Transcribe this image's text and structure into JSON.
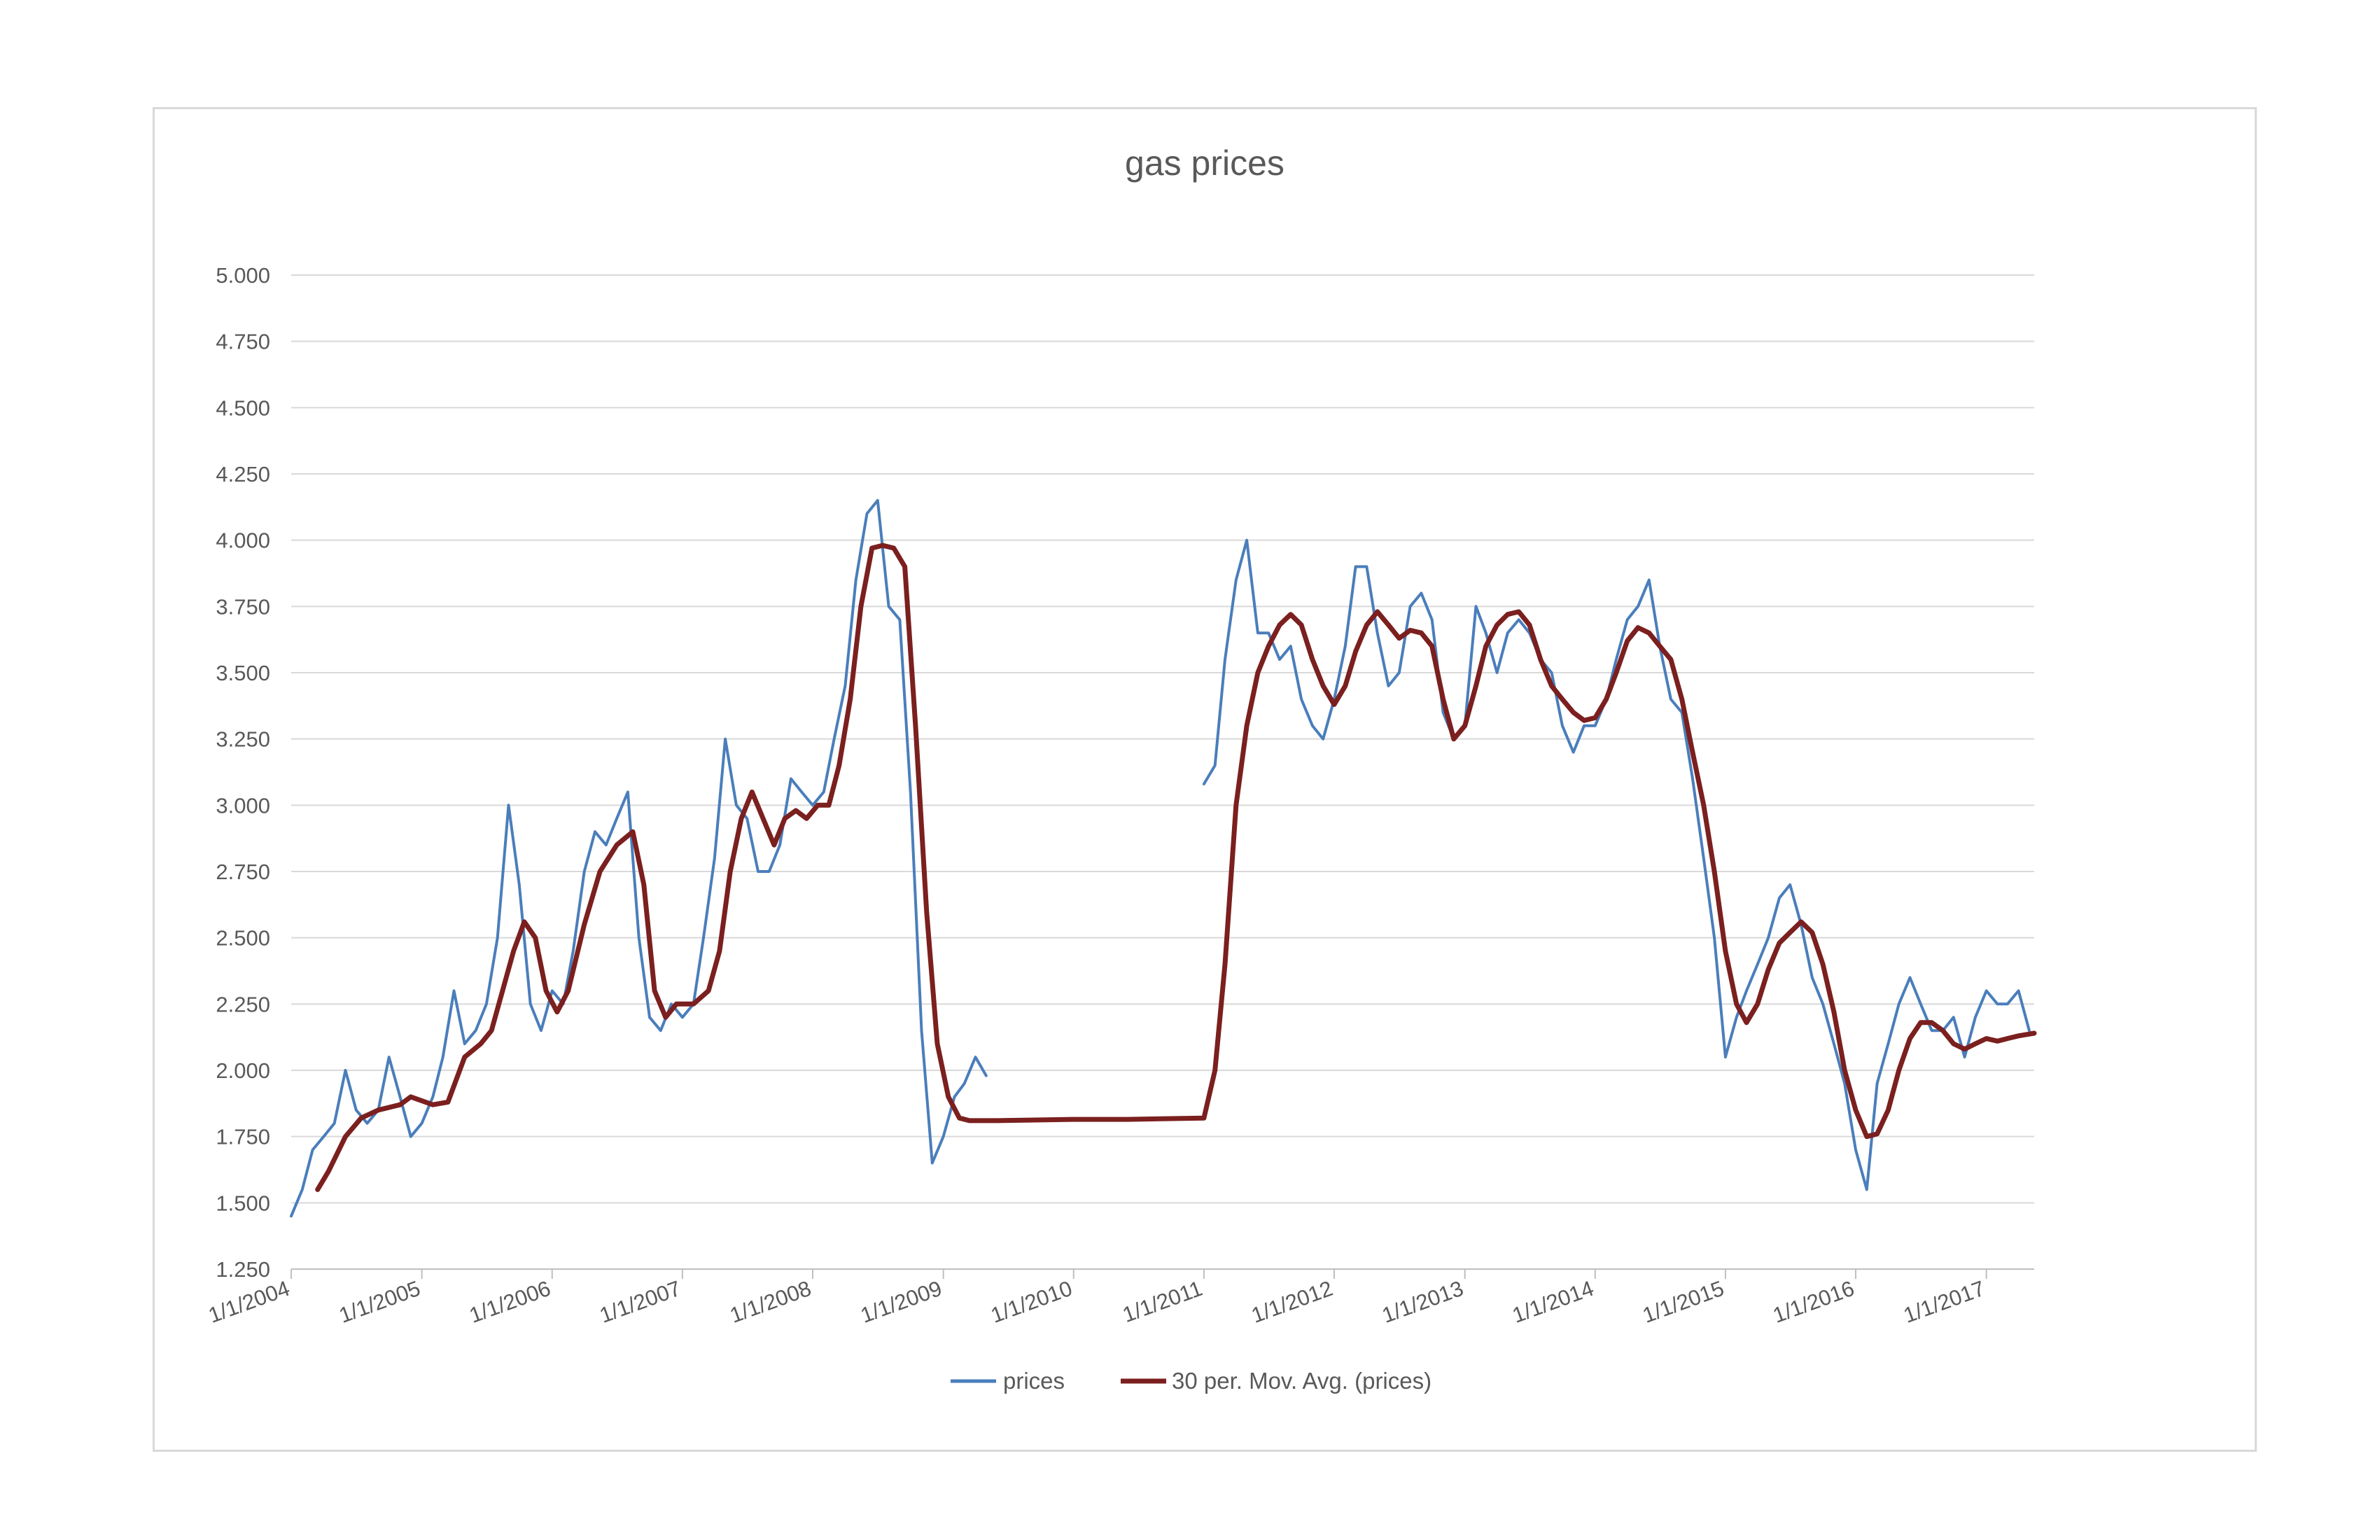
{
  "chart_data": {
    "type": "line",
    "title": "gas prices",
    "xlabel": "",
    "ylabel": "",
    "ylim": [
      1.25,
      5.0
    ],
    "yticks": [
      "1.250",
      "1.500",
      "1.750",
      "2.000",
      "2.250",
      "2.500",
      "2.750",
      "3.000",
      "3.250",
      "3.500",
      "3.750",
      "4.000",
      "4.250",
      "4.500",
      "4.750",
      "5.000"
    ],
    "xlim": [
      "2004-01-01",
      "2017-05-15"
    ],
    "xticks": [
      "1/1/2004",
      "1/1/2005",
      "1/1/2006",
      "1/1/2007",
      "1/1/2008",
      "1/1/2009",
      "1/1/2010",
      "1/1/2011",
      "1/1/2012",
      "1/1/2013",
      "1/1/2014",
      "1/1/2015",
      "1/1/2016",
      "1/1/2017"
    ],
    "grid": true,
    "legend_position": "bottom",
    "series": [
      {
        "name": "prices",
        "color": "#4a7ebb",
        "points": [
          [
            "2004-01-01",
            1.45
          ],
          [
            "2004-02-01",
            1.55
          ],
          [
            "2004-03-01",
            1.7
          ],
          [
            "2004-04-01",
            1.75
          ],
          [
            "2004-05-01",
            1.8
          ],
          [
            "2004-06-01",
            2.0
          ],
          [
            "2004-07-01",
            1.85
          ],
          [
            "2004-08-01",
            1.8
          ],
          [
            "2004-09-01",
            1.85
          ],
          [
            "2004-10-01",
            2.05
          ],
          [
            "2004-11-01",
            1.9
          ],
          [
            "2004-12-01",
            1.75
          ],
          [
            "2005-01-01",
            1.8
          ],
          [
            "2005-02-01",
            1.9
          ],
          [
            "2005-03-01",
            2.05
          ],
          [
            "2005-04-01",
            2.3
          ],
          [
            "2005-05-01",
            2.1
          ],
          [
            "2005-06-01",
            2.15
          ],
          [
            "2005-07-01",
            2.25
          ],
          [
            "2005-08-01",
            2.5
          ],
          [
            "2005-09-01",
            3.0
          ],
          [
            "2005-10-01",
            2.7
          ],
          [
            "2005-11-01",
            2.25
          ],
          [
            "2005-12-01",
            2.15
          ],
          [
            "2006-01-01",
            2.3
          ],
          [
            "2006-02-01",
            2.25
          ],
          [
            "2006-03-01",
            2.45
          ],
          [
            "2006-04-01",
            2.75
          ],
          [
            "2006-05-01",
            2.9
          ],
          [
            "2006-06-01",
            2.85
          ],
          [
            "2006-07-01",
            2.95
          ],
          [
            "2006-08-01",
            3.05
          ],
          [
            "2006-09-01",
            2.5
          ],
          [
            "2006-10-01",
            2.2
          ],
          [
            "2006-11-01",
            2.15
          ],
          [
            "2006-12-01",
            2.25
          ],
          [
            "2007-01-01",
            2.2
          ],
          [
            "2007-02-01",
            2.25
          ],
          [
            "2007-03-01",
            2.5
          ],
          [
            "2007-04-01",
            2.8
          ],
          [
            "2007-05-01",
            3.25
          ],
          [
            "2007-06-01",
            3.0
          ],
          [
            "2007-07-01",
            2.95
          ],
          [
            "2007-08-01",
            2.75
          ],
          [
            "2007-09-01",
            2.75
          ],
          [
            "2007-10-01",
            2.85
          ],
          [
            "2007-11-01",
            3.1
          ],
          [
            "2007-12-01",
            3.05
          ],
          [
            "2008-01-01",
            3.0
          ],
          [
            "2008-02-01",
            3.05
          ],
          [
            "2008-03-01",
            3.25
          ],
          [
            "2008-04-01",
            3.45
          ],
          [
            "2008-05-01",
            3.85
          ],
          [
            "2008-06-01",
            4.1
          ],
          [
            "2008-07-01",
            4.15
          ],
          [
            "2008-08-01",
            3.75
          ],
          [
            "2008-09-01",
            3.7
          ],
          [
            "2008-10-01",
            3.05
          ],
          [
            "2008-11-01",
            2.15
          ],
          [
            "2008-12-01",
            1.65
          ],
          [
            "2009-01-01",
            1.75
          ],
          [
            "2009-02-01",
            1.9
          ],
          [
            "2009-03-01",
            1.95
          ],
          [
            "2009-04-01",
            2.05
          ],
          [
            "2009-05-01",
            1.98
          ]
        ],
        "points2": [
          [
            "2011-01-01",
            3.08
          ],
          [
            "2011-02-01",
            3.15
          ],
          [
            "2011-03-01",
            3.55
          ],
          [
            "2011-04-01",
            3.85
          ],
          [
            "2011-05-01",
            4.0
          ],
          [
            "2011-06-01",
            3.65
          ],
          [
            "2011-07-01",
            3.65
          ],
          [
            "2011-08-01",
            3.55
          ],
          [
            "2011-09-01",
            3.6
          ],
          [
            "2011-10-01",
            3.4
          ],
          [
            "2011-11-01",
            3.3
          ],
          [
            "2011-12-01",
            3.25
          ],
          [
            "2012-01-01",
            3.4
          ],
          [
            "2012-02-01",
            3.6
          ],
          [
            "2012-03-01",
            3.9
          ],
          [
            "2012-04-01",
            3.9
          ],
          [
            "2012-05-01",
            3.65
          ],
          [
            "2012-06-01",
            3.45
          ],
          [
            "2012-07-01",
            3.5
          ],
          [
            "2012-08-01",
            3.75
          ],
          [
            "2012-09-01",
            3.8
          ],
          [
            "2012-10-01",
            3.7
          ],
          [
            "2012-11-01",
            3.35
          ],
          [
            "2012-12-01",
            3.25
          ],
          [
            "2013-01-01",
            3.3
          ],
          [
            "2013-02-01",
            3.75
          ],
          [
            "2013-03-01",
            3.65
          ],
          [
            "2013-04-01",
            3.5
          ],
          [
            "2013-05-01",
            3.65
          ],
          [
            "2013-06-01",
            3.7
          ],
          [
            "2013-07-01",
            3.65
          ],
          [
            "2013-08-01",
            3.55
          ],
          [
            "2013-09-01",
            3.5
          ],
          [
            "2013-10-01",
            3.3
          ],
          [
            "2013-11-01",
            3.2
          ],
          [
            "2013-12-01",
            3.3
          ],
          [
            "2014-01-01",
            3.3
          ],
          [
            "2014-02-01",
            3.4
          ],
          [
            "2014-03-01",
            3.55
          ],
          [
            "2014-04-01",
            3.7
          ],
          [
            "2014-05-01",
            3.75
          ],
          [
            "2014-06-01",
            3.85
          ],
          [
            "2014-07-01",
            3.6
          ],
          [
            "2014-08-01",
            3.4
          ],
          [
            "2014-09-01",
            3.35
          ],
          [
            "2014-10-01",
            3.1
          ],
          [
            "2014-11-01",
            2.8
          ],
          [
            "2014-12-01",
            2.5
          ],
          [
            "2015-01-01",
            2.05
          ],
          [
            "2015-02-01",
            2.2
          ],
          [
            "2015-03-01",
            2.3
          ],
          [
            "2015-04-01",
            2.4
          ],
          [
            "2015-05-01",
            2.5
          ],
          [
            "2015-06-01",
            2.65
          ],
          [
            "2015-07-01",
            2.7
          ],
          [
            "2015-08-01",
            2.55
          ],
          [
            "2015-09-01",
            2.35
          ],
          [
            "2015-10-01",
            2.25
          ],
          [
            "2015-11-01",
            2.1
          ],
          [
            "2015-12-01",
            1.95
          ],
          [
            "2016-01-01",
            1.7
          ],
          [
            "2016-02-01",
            1.55
          ],
          [
            "2016-03-01",
            1.95
          ],
          [
            "2016-04-01",
            2.1
          ],
          [
            "2016-05-01",
            2.25
          ],
          [
            "2016-06-01",
            2.35
          ],
          [
            "2016-07-01",
            2.25
          ],
          [
            "2016-08-01",
            2.15
          ],
          [
            "2016-09-01",
            2.15
          ],
          [
            "2016-10-01",
            2.2
          ],
          [
            "2016-11-01",
            2.05
          ],
          [
            "2016-12-01",
            2.2
          ],
          [
            "2017-01-01",
            2.3
          ],
          [
            "2017-02-01",
            2.25
          ],
          [
            "2017-03-01",
            2.25
          ],
          [
            "2017-04-01",
            2.3
          ],
          [
            "2017-05-01",
            2.15
          ]
        ]
      },
      {
        "name": "30 per. Mov. Avg. (prices)",
        "color": "#7b1f1f",
        "points": [
          [
            "2004-03-15",
            1.55
          ],
          [
            "2004-04-15",
            1.62
          ],
          [
            "2004-06-01",
            1.75
          ],
          [
            "2004-07-15",
            1.82
          ],
          [
            "2004-09-01",
            1.85
          ],
          [
            "2004-11-01",
            1.87
          ],
          [
            "2004-12-01",
            1.9
          ],
          [
            "2005-02-01",
            1.87
          ],
          [
            "2005-03-15",
            1.88
          ],
          [
            "2005-05-01",
            2.05
          ],
          [
            "2005-06-15",
            2.1
          ],
          [
            "2005-07-15",
            2.15
          ],
          [
            "2005-08-15",
            2.3
          ],
          [
            "2005-09-15",
            2.45
          ],
          [
            "2005-10-15",
            2.56
          ],
          [
            "2005-11-15",
            2.5
          ],
          [
            "2005-12-15",
            2.3
          ],
          [
            "2006-01-15",
            2.22
          ],
          [
            "2006-02-15",
            2.3
          ],
          [
            "2006-04-01",
            2.55
          ],
          [
            "2006-05-15",
            2.75
          ],
          [
            "2006-07-01",
            2.85
          ],
          [
            "2006-08-15",
            2.9
          ],
          [
            "2006-09-15",
            2.7
          ],
          [
            "2006-10-15",
            2.3
          ],
          [
            "2006-11-15",
            2.2
          ],
          [
            "2006-12-15",
            2.25
          ],
          [
            "2007-02-01",
            2.25
          ],
          [
            "2007-03-15",
            2.3
          ],
          [
            "2007-04-15",
            2.45
          ],
          [
            "2007-05-15",
            2.75
          ],
          [
            "2007-06-15",
            2.95
          ],
          [
            "2007-07-15",
            3.05
          ],
          [
            "2007-08-15",
            2.95
          ],
          [
            "2007-09-15",
            2.85
          ],
          [
            "2007-10-15",
            2.95
          ],
          [
            "2007-11-15",
            2.98
          ],
          [
            "2007-12-15",
            2.95
          ],
          [
            "2008-01-15",
            3.0
          ],
          [
            "2008-02-15",
            3.0
          ],
          [
            "2008-03-15",
            3.15
          ],
          [
            "2008-04-15",
            3.4
          ],
          [
            "2008-05-15",
            3.75
          ],
          [
            "2008-06-15",
            3.97
          ],
          [
            "2008-07-15",
            3.98
          ],
          [
            "2008-08-15",
            3.97
          ],
          [
            "2008-09-15",
            3.9
          ],
          [
            "2008-10-15",
            3.3
          ],
          [
            "2008-11-15",
            2.6
          ],
          [
            "2008-12-15",
            2.1
          ],
          [
            "2009-01-15",
            1.9
          ],
          [
            "2009-02-15",
            1.82
          ],
          [
            "2009-03-15",
            1.81
          ],
          [
            "2009-06-01",
            1.81
          ],
          [
            "2010-01-01",
            1.815
          ],
          [
            "2010-06-01",
            1.815
          ],
          [
            "2011-01-01",
            1.82
          ],
          [
            "2011-02-01",
            2.0
          ],
          [
            "2011-03-01",
            2.4
          ],
          [
            "2011-04-01",
            3.0
          ],
          [
            "2011-05-01",
            3.3
          ],
          [
            "2011-06-01",
            3.5
          ],
          [
            "2011-07-01",
            3.6
          ],
          [
            "2011-08-01",
            3.68
          ],
          [
            "2011-09-01",
            3.72
          ],
          [
            "2011-10-01",
            3.68
          ],
          [
            "2011-11-01",
            3.55
          ],
          [
            "2011-12-01",
            3.45
          ],
          [
            "2012-01-01",
            3.38
          ],
          [
            "2012-02-01",
            3.45
          ],
          [
            "2012-03-01",
            3.58
          ],
          [
            "2012-04-01",
            3.68
          ],
          [
            "2012-05-01",
            3.73
          ],
          [
            "2012-06-01",
            3.68
          ],
          [
            "2012-07-01",
            3.63
          ],
          [
            "2012-08-01",
            3.66
          ],
          [
            "2012-09-01",
            3.65
          ],
          [
            "2012-10-01",
            3.6
          ],
          [
            "2012-11-01",
            3.4
          ],
          [
            "2012-12-01",
            3.25
          ],
          [
            "2013-01-01",
            3.3
          ],
          [
            "2013-02-01",
            3.45
          ],
          [
            "2013-03-01",
            3.6
          ],
          [
            "2013-04-01",
            3.68
          ],
          [
            "2013-05-01",
            3.72
          ],
          [
            "2013-06-01",
            3.73
          ],
          [
            "2013-07-01",
            3.68
          ],
          [
            "2013-08-01",
            3.55
          ],
          [
            "2013-09-01",
            3.45
          ],
          [
            "2013-10-01",
            3.4
          ],
          [
            "2013-11-01",
            3.35
          ],
          [
            "2013-12-01",
            3.32
          ],
          [
            "2014-01-01",
            3.33
          ],
          [
            "2014-02-01",
            3.4
          ],
          [
            "2014-03-01",
            3.5
          ],
          [
            "2014-04-01",
            3.62
          ],
          [
            "2014-05-01",
            3.67
          ],
          [
            "2014-06-01",
            3.65
          ],
          [
            "2014-07-01",
            3.6
          ],
          [
            "2014-08-01",
            3.55
          ],
          [
            "2014-09-01",
            3.4
          ],
          [
            "2014-10-01",
            3.2
          ],
          [
            "2014-11-01",
            3.0
          ],
          [
            "2014-12-01",
            2.75
          ],
          [
            "2015-01-01",
            2.45
          ],
          [
            "2015-02-01",
            2.25
          ],
          [
            "2015-03-01",
            2.18
          ],
          [
            "2015-04-01",
            2.25
          ],
          [
            "2015-05-01",
            2.38
          ],
          [
            "2015-06-01",
            2.48
          ],
          [
            "2015-07-01",
            2.52
          ],
          [
            "2015-08-01",
            2.56
          ],
          [
            "2015-09-01",
            2.52
          ],
          [
            "2015-10-01",
            2.4
          ],
          [
            "2015-11-01",
            2.22
          ],
          [
            "2015-12-01",
            2.0
          ],
          [
            "2016-01-01",
            1.85
          ],
          [
            "2016-02-01",
            1.75
          ],
          [
            "2016-03-01",
            1.76
          ],
          [
            "2016-04-01",
            1.85
          ],
          [
            "2016-05-01",
            2.0
          ],
          [
            "2016-06-01",
            2.12
          ],
          [
            "2016-07-01",
            2.18
          ],
          [
            "2016-08-01",
            2.18
          ],
          [
            "2016-09-01",
            2.15
          ],
          [
            "2016-10-01",
            2.1
          ],
          [
            "2016-11-01",
            2.08
          ],
          [
            "2016-12-01",
            2.1
          ],
          [
            "2017-01-01",
            2.12
          ],
          [
            "2017-02-01",
            2.11
          ],
          [
            "2017-03-01",
            2.12
          ],
          [
            "2017-04-01",
            2.13
          ],
          [
            "2017-05-15",
            2.14
          ]
        ]
      }
    ]
  }
}
